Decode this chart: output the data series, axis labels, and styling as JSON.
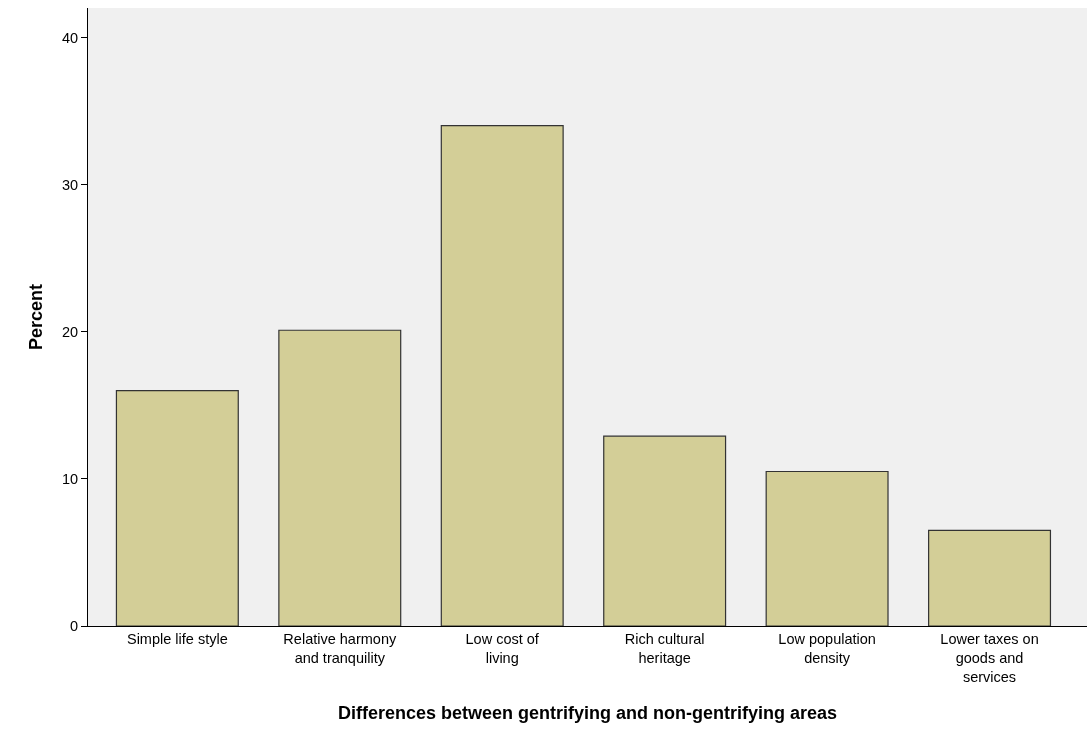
{
  "chart_data": {
    "type": "bar",
    "xlabel": "Differences between gentrifying and non-gentrifying areas",
    "ylabel": "Percent",
    "categories": [
      "Simple life style",
      "Relative harmony and tranquility",
      "Low cost of living",
      "Rich cultural heritage",
      "Low population density",
      "Lower taxes on goods and services"
    ],
    "values": [
      16.0,
      20.1,
      34.0,
      12.9,
      10.5,
      6.5
    ],
    "color": "#d3ce97",
    "ylim": [
      0,
      42
    ],
    "yticks": [
      0,
      10,
      20,
      30,
      40
    ],
    "grid": false
  }
}
